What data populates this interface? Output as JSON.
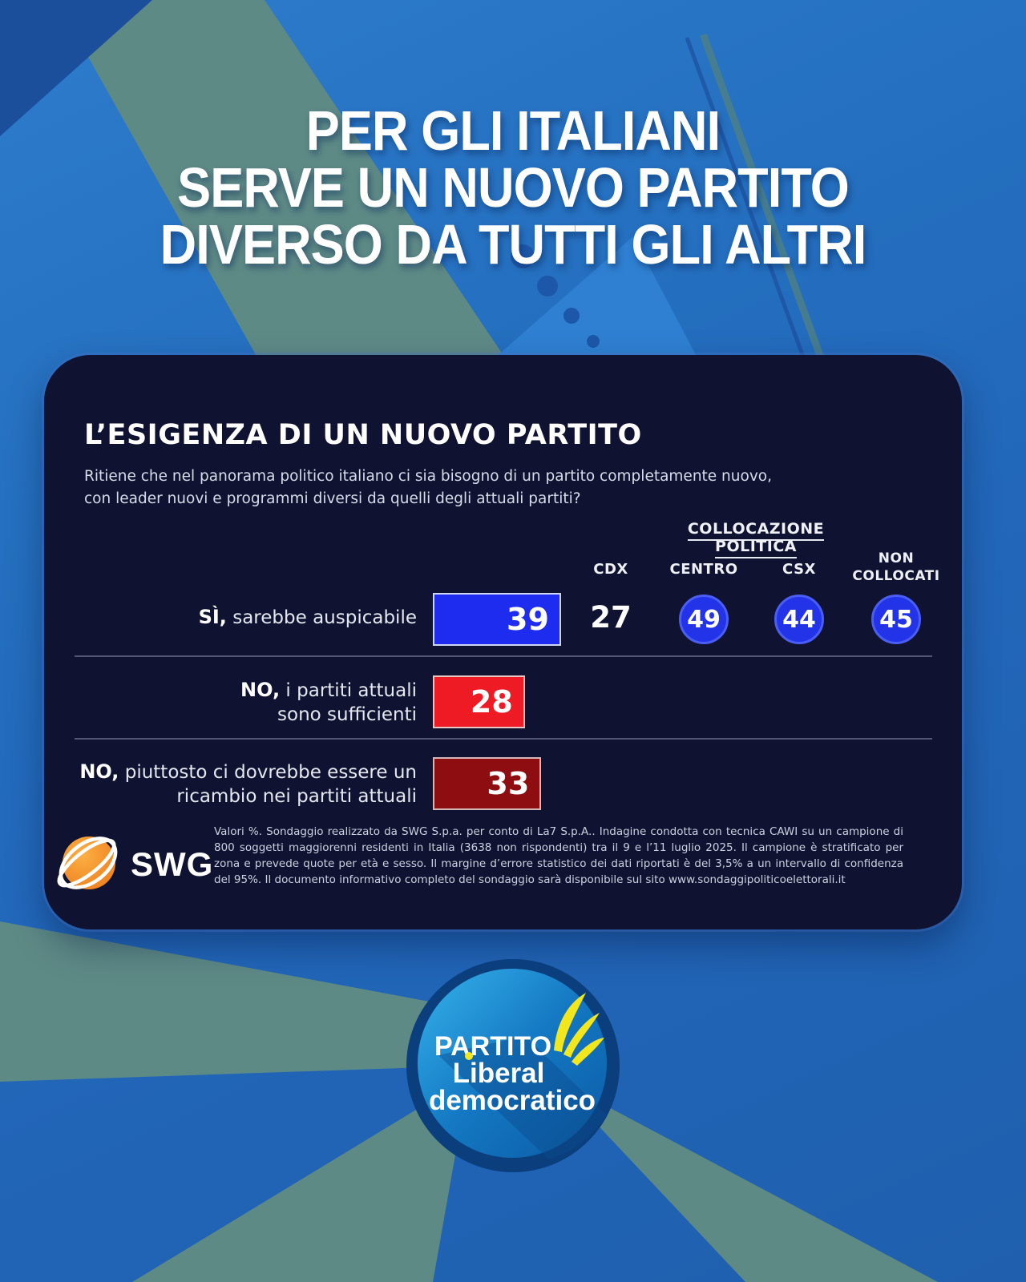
{
  "title": {
    "line1": "PER GLI ITALIANI",
    "line2": "SERVE UN NUOVO PARTITO",
    "line3": "DIVERSO DA TUTTI GLI ALTRI"
  },
  "card": {
    "heading": "L’ESIGENZA DI UN NUOVO PARTITO",
    "question_line1": "Ritiene che nel panorama politico italiano ci sia bisogno di un partito completamente nuovo,",
    "question_line2": "con leader nuovi e programmi diversi da quelli degli attuali partiti?",
    "group_header": "COLLOCAZIONE POLITICA",
    "columns": [
      "CDX",
      "CENTRO",
      "CSX",
      "NON COLLOCATI"
    ],
    "rows": [
      {
        "label_bold": "SÌ,",
        "label_rest": " sarebbe auspicabile",
        "value": "39",
        "cdx": "27",
        "centro": "49",
        "csx": "44",
        "non_collocati": "45"
      },
      {
        "label_bold": "NO,",
        "label_rest": " i partiti attuali sono sufficienti",
        "value": "28"
      },
      {
        "label_bold": "NO,",
        "label_rest": " piuttosto ci dovrebbe essere un ricambio nei partiti attuali",
        "value": "33"
      }
    ],
    "swg_logo_text": "SWG",
    "disclaimer": "Valori %. Sondaggio realizzato da SWG S.p.a. per conto di La7 S.p.A.. Indagine condotta con tecnica CAWI su un campione di 800 soggetti maggiorenni residenti in Italia (3638 non rispondenti) tra il 9 e l’11 luglio 2025. Il campione è stratificato per zona e prevede quote per età e sesso. Il margine d’errore statistico dei dati riportati è del 3,5% a un intervallo di confidenza del 95%. Il documento informativo completo del sondaggio sarà disponibile sul sito www.sondaggipoliticoelettorali.it"
  },
  "footer_logo": {
    "line1": "PARTITO",
    "line2": "Liberal",
    "line3": "democratico"
  },
  "colors": {
    "background_blue": "#2268bc",
    "accent_teal": "#5e8a86",
    "card_navy": "#0f1331",
    "bar_blue": "#1e2cf0",
    "bar_red": "#ee1b24",
    "bar_dark_red": "#8e0d10",
    "badge_blue": "#2233e8",
    "logo_yellow": "#f2e71e"
  },
  "chart_data": {
    "type": "bar",
    "title": "L’ESIGENZA DI UN NUOVO PARTITO",
    "question": "Ritiene che nel panorama politico italiano ci sia bisogno di un partito completamente nuovo, con leader nuovi e programmi diversi da quelli degli attuali partiti?",
    "unit": "Valori %",
    "categories": [
      "SÌ, sarebbe auspicabile",
      "NO, i partiti attuali sono sufficienti",
      "NO, piuttosto ci dovrebbe essere un ricambio nei partiti attuali"
    ],
    "values": [
      39,
      28,
      33
    ],
    "bar_colors": [
      "#1e2cf0",
      "#ee1b24",
      "#8e0d10"
    ],
    "breakdown_label": "COLLOCAZIONE POLITICA",
    "breakdown_columns": [
      "CDX",
      "CENTRO",
      "CSX",
      "NON COLLOCATI"
    ],
    "breakdown_values_for_si": [
      27,
      49,
      44,
      45
    ]
  }
}
